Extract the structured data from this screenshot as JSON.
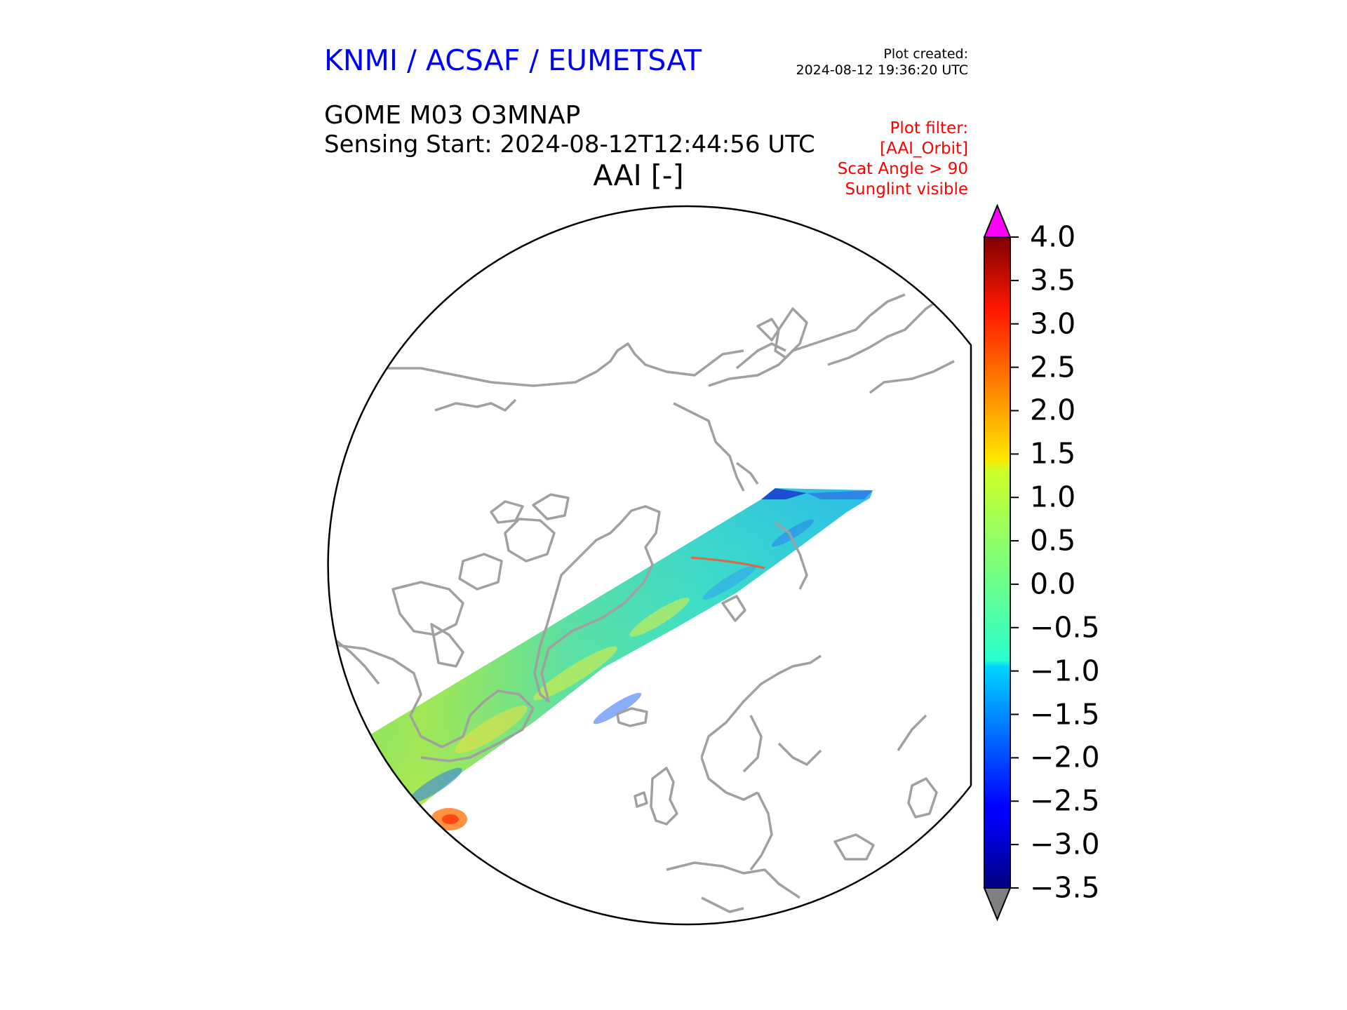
{
  "header": {
    "org_title": "KNMI / ACSAF / EUMETSAT",
    "created_label": "Plot created:",
    "created_value": "2024-08-12 19:36:20 UTC",
    "product": "GOME M03 O3MNAP",
    "sensing_start": "Sensing Start: 2024-08-12T12:44:56 UTC",
    "variable_title": "AAI [-]",
    "filter_lines": [
      "Plot filter:",
      "[AAI_Orbit]",
      "Scat Angle > 90",
      "Sunglint visible"
    ]
  },
  "colors": {
    "org_title": "#0000ff",
    "filter": "#ff0000",
    "coastline": "#a0a0a0",
    "over_color": "#ff00ff",
    "under_color": "#808080"
  },
  "map": {
    "projection": "north polar stereographic (orthographic-style disk)",
    "features": [
      "coastlines",
      "satellite orbit swath of AAI values"
    ]
  },
  "colorbar": {
    "colormap": "jet",
    "vmin": -3.5,
    "vmax": 4.0,
    "extend": "both",
    "ticks": [
      "4.0",
      "3.5",
      "3.0",
      "2.5",
      "2.0",
      "1.5",
      "1.0",
      "0.5",
      "0.0",
      "−0.5",
      "−1.0",
      "−1.5",
      "−2.0",
      "−2.5",
      "−3.0",
      "−3.5"
    ]
  }
}
